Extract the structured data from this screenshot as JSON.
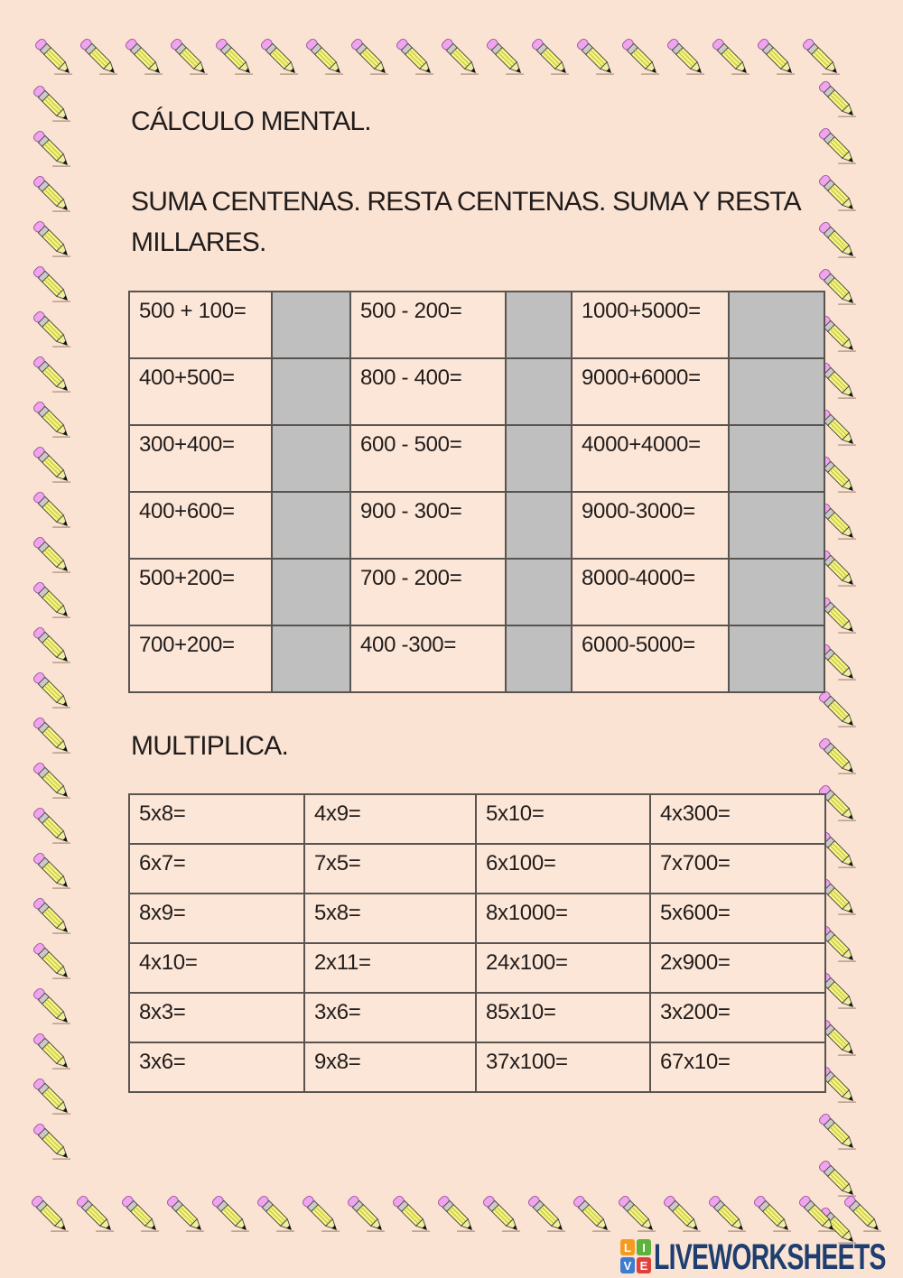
{
  "page": {
    "title": "CÁLCULO MENTAL.",
    "subtitle_lines": [
      "SUMA CENTENAS. RESTA CENTENAS. SUMA Y RESTA",
      "MILLARES."
    ],
    "multiplica_heading": "MULTIPLICA."
  },
  "table1": {
    "description": "sum-and-subtract exercises with gray answer boxes",
    "rows": [
      [
        "500 + 100=",
        "500 - 200=",
        "1000+5000="
      ],
      [
        "400+500=",
        "800 - 400=",
        "9000+6000="
      ],
      [
        "300+400=",
        "600 - 500=",
        "4000+4000="
      ],
      [
        "400+600=",
        "900 - 300=",
        "9000-3000="
      ],
      [
        "500+200=",
        "700 - 200=",
        "8000-4000="
      ],
      [
        "700+200=",
        "400 -300=",
        "6000-5000="
      ]
    ]
  },
  "table2": {
    "description": "multiplication exercises",
    "rows": [
      [
        "5x8=",
        "4x9=",
        "5x10=",
        "4x300="
      ],
      [
        "6x7=",
        "7x5=",
        "6x100=",
        "7x700="
      ],
      [
        "8x9=",
        "5x8=",
        "8x1000=",
        "5x600="
      ],
      [
        "4x10=",
        "2x11=",
        "24x100=",
        "2x900="
      ],
      [
        "8x3=",
        "3x6=",
        "85x10=",
        "3x200="
      ],
      [
        "3x6=",
        "9x8=",
        "37x100=",
        "67x10="
      ]
    ]
  },
  "logo": {
    "brand": "LIVEWORKSHEETS",
    "brand_color": "#1d3e6f",
    "icon_letters": [
      "L",
      "I",
      "V",
      "E"
    ],
    "icon_colors": [
      "#f59b22",
      "#5cb43c",
      "#3e7cd0",
      "#e2403a"
    ]
  },
  "decor": {
    "pencil_icon": "pencil-icon",
    "top_count": 18,
    "bottom_count": 19,
    "left_count": 24,
    "right_count": 25
  },
  "colors": {
    "background": "#fbe3d4",
    "question_cell_bg": "#fce6d7",
    "answer_cell_bg": "#bfbfbf",
    "table_border": "#595450",
    "text": "#211d1c"
  }
}
